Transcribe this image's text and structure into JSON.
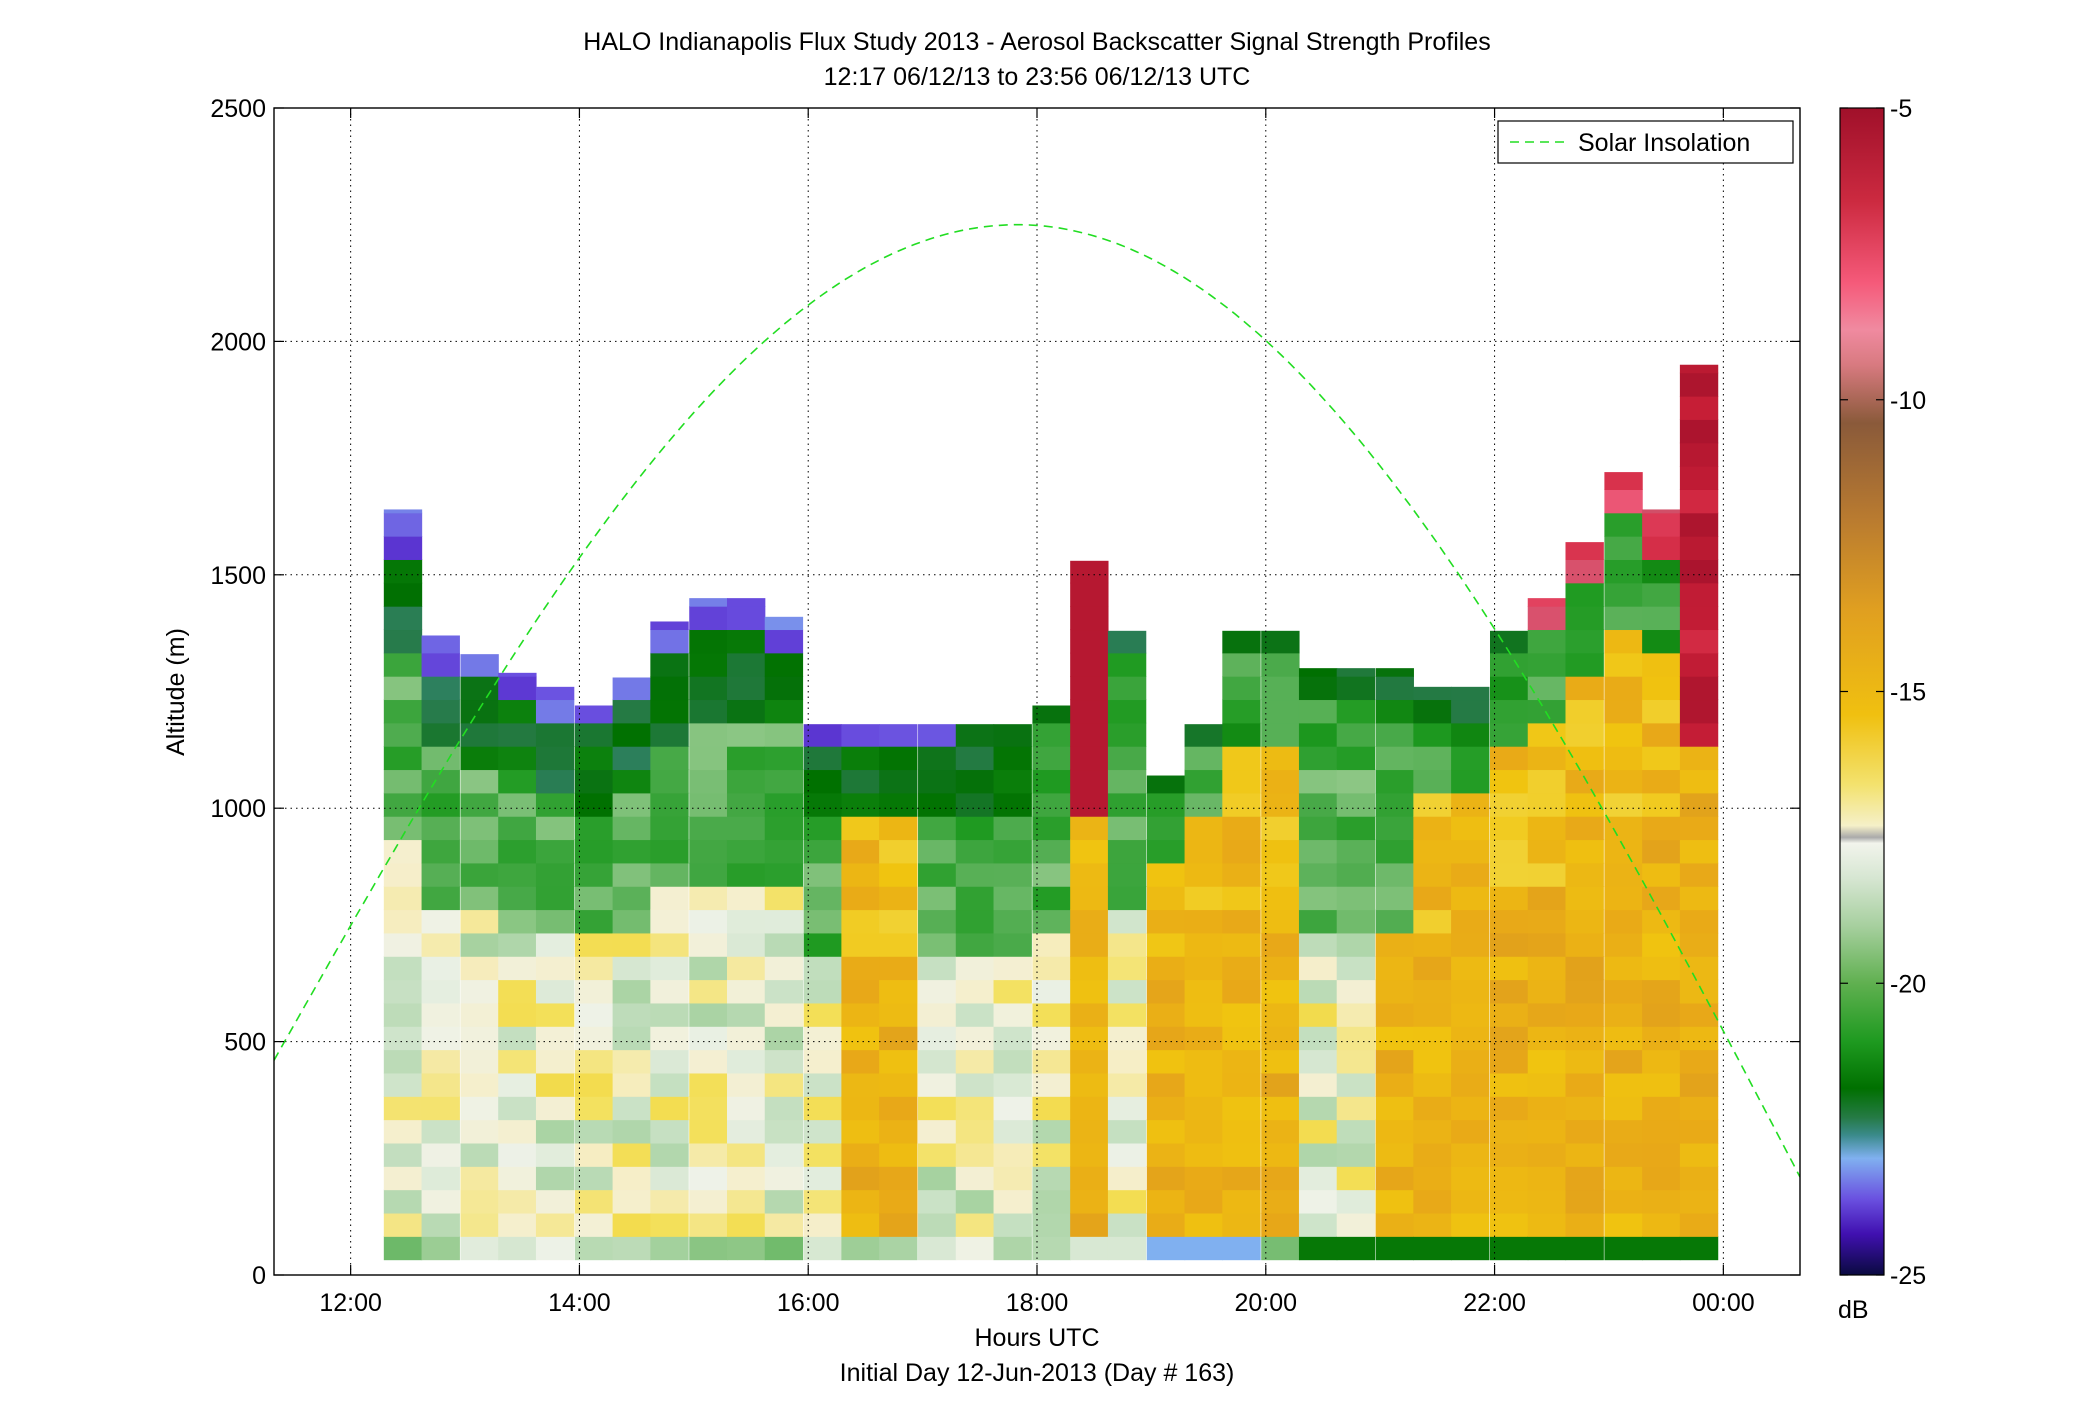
{
  "chart_data": {
    "type": "heatmap",
    "title": "HALO Indianapolis Flux Study 2013 - Aerosol Backscatter Signal Strength Profiles",
    "subtitle": "12:17 06/12/13 to 23:56 06/12/13  UTC",
    "xlabel": "Hours UTC",
    "xlabel2": "Initial Day 12-Jun-2013 (Day # 163)",
    "ylabel": "Altitude (m)",
    "x_tick_labels": [
      "12:00",
      "14:00",
      "16:00",
      "18:00",
      "20:00",
      "22:00",
      "00:00"
    ],
    "x_tick_hours": [
      12,
      14,
      16,
      18,
      20,
      22,
      24
    ],
    "xlim": [
      11.33,
      24.67
    ],
    "y_ticks": [
      0,
      500,
      1000,
      1500,
      2000,
      2500
    ],
    "y_tick_labels": [
      "0",
      "500",
      "1000",
      "1500",
      "2000",
      "2500"
    ],
    "ylim": [
      0,
      2500
    ],
    "grid": true,
    "colorbar": {
      "label": "dB",
      "range": [
        -25,
        -5
      ],
      "ticks": [
        -5,
        -10,
        -15,
        -20,
        -25
      ],
      "tick_labels": [
        "-5",
        "-10",
        "-15",
        "-20",
        "-25"
      ]
    },
    "legend": {
      "position": "top-right",
      "entries": [
        {
          "name": "Solar Insolation",
          "color": "#22dd22",
          "style": "dashed"
        }
      ]
    },
    "profile_start_hours": [
      12.29,
      12.62,
      12.96,
      13.29,
      13.62,
      13.96,
      14.29,
      14.62,
      14.96,
      15.29,
      15.62,
      15.96,
      16.29,
      16.62,
      16.96,
      17.29,
      17.62,
      17.96,
      18.29,
      18.62,
      18.96,
      19.29,
      19.62,
      19.96,
      20.29,
      20.62,
      20.96,
      21.29,
      21.62,
      21.96,
      22.29,
      22.62,
      22.96,
      23.29,
      23.62
    ],
    "profile_width_hours": 0.33,
    "altitude_bin_m": 50,
    "first_bin_base_m": 33,
    "signal_top_m": [
      1640,
      1370,
      1330,
      1290,
      1260,
      1220,
      1280,
      1400,
      1450,
      1450,
      1410,
      1180,
      1180,
      1180,
      1180,
      1180,
      1180,
      1220,
      1530,
      1380,
      1070,
      1180,
      1380,
      1380,
      1300,
      1300,
      1300,
      1260,
      1260,
      1380,
      1450,
      1570,
      1720,
      1640,
      1950
    ],
    "solar_insolation_curve": {
      "start_hour": 11.33,
      "end_hour": 24.67,
      "peak_hour": 17.83,
      "peak_altitude_m": 2250,
      "edge_altitude_m": 460,
      "end_altitude_m": 210
    }
  }
}
